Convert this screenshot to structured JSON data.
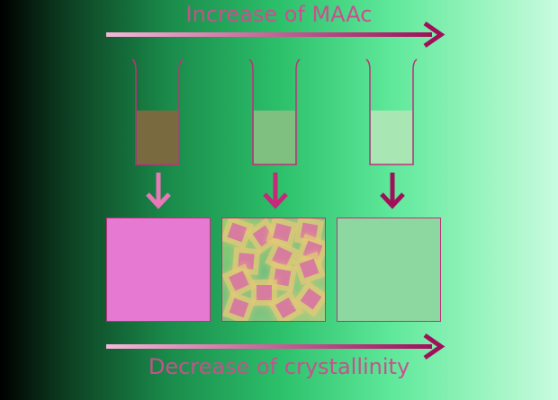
{
  "top_label": "Increase of MAAc",
  "bottom_label": "Decrease of crystallinity",
  "colors": {
    "arrow": "#a0105a",
    "text": "#c8508e",
    "gradient_arrow_start": "#f4b8d8"
  },
  "beakers": [
    {
      "liquid": "#7a6a40"
    },
    {
      "liquid": "#7fbf80"
    },
    {
      "liquid": "#a8e6b4"
    }
  ],
  "arrow_colors": [
    "#e878b8",
    "#c8287a",
    "#a0105a"
  ],
  "samples": [
    {
      "fill": "#e67ad2",
      "state": "amorphous"
    },
    {
      "fill": "#6cc080",
      "state": "crystalline"
    },
    {
      "fill": "#8cd8a0",
      "state": "amorphous"
    }
  ]
}
